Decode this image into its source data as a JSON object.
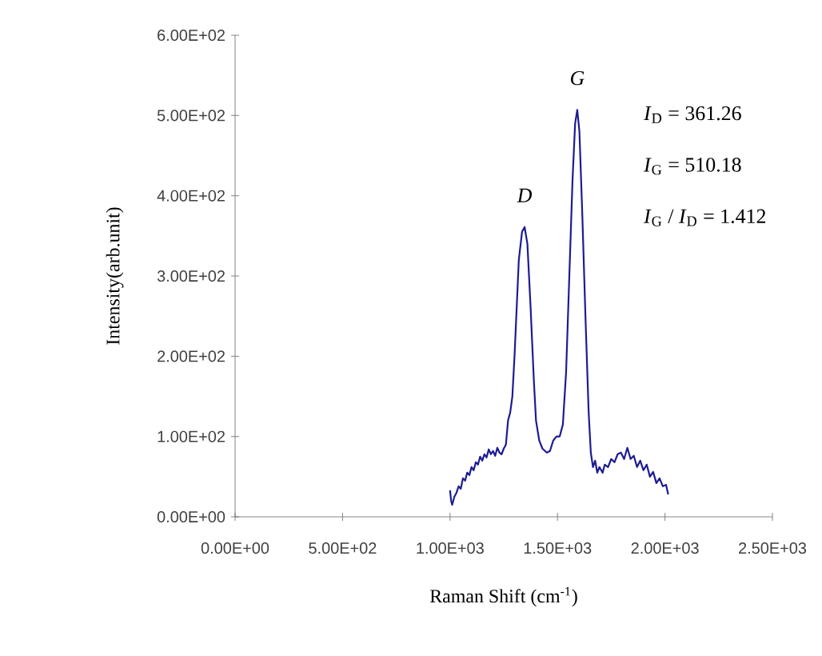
{
  "chart_data": {
    "type": "line",
    "xlabel": "Raman Shift (cm$^{-1}$)",
    "ylabel": "Intensity(arb.unit)",
    "x": [
      1000,
      1005,
      1010,
      1020,
      1030,
      1040,
      1050,
      1060,
      1070,
      1080,
      1090,
      1100,
      1110,
      1120,
      1130,
      1140,
      1150,
      1160,
      1170,
      1180,
      1190,
      1200,
      1210,
      1220,
      1230,
      1240,
      1250,
      1260,
      1270,
      1280,
      1290,
      1300,
      1310,
      1320,
      1335,
      1347,
      1360,
      1375,
      1390,
      1400,
      1415,
      1430,
      1450,
      1465,
      1480,
      1495,
      1510,
      1525,
      1540,
      1555,
      1570,
      1582,
      1592,
      1602,
      1615,
      1630,
      1645,
      1655,
      1665,
      1675,
      1685,
      1695,
      1710,
      1720,
      1735,
      1750,
      1765,
      1780,
      1795,
      1810,
      1825,
      1840,
      1855,
      1870,
      1885,
      1900,
      1915,
      1930,
      1945,
      1960,
      1975,
      1990,
      2005,
      2015
    ],
    "series": [
      {
        "color": "#1c1c94",
        "values": [
          33,
          20,
          15,
          25,
          30,
          38,
          35,
          48,
          45,
          55,
          52,
          62,
          58,
          68,
          65,
          75,
          70,
          78,
          74,
          84,
          78,
          82,
          76,
          86,
          80,
          78,
          85,
          90,
          120,
          130,
          150,
          200,
          260,
          320,
          355,
          361,
          340,
          260,
          170,
          120,
          95,
          85,
          80,
          82,
          95,
          100,
          100,
          115,
          180,
          300,
          420,
          490,
          507,
          480,
          380,
          250,
          130,
          80,
          62,
          70,
          55,
          62,
          55,
          65,
          62,
          72,
          68,
          78,
          80,
          72,
          86,
          72,
          76,
          62,
          70,
          58,
          65,
          50,
          56,
          42,
          48,
          38,
          40,
          28
        ]
      }
    ],
    "xlim": [
      0,
      2500
    ],
    "xticks": [
      {
        "value": 0,
        "label": "0.00E+00"
      },
      {
        "value": 500,
        "label": "5.00E+02"
      },
      {
        "value": 1000,
        "label": "1.00E+03"
      },
      {
        "value": 1500,
        "label": "1.50E+03"
      },
      {
        "value": 2000,
        "label": "2.00E+03"
      },
      {
        "value": 2500,
        "label": "2.50E+03"
      }
    ],
    "ylim": [
      0,
      600
    ],
    "yticks": [
      {
        "value": 0,
        "label": "0.00E+00"
      },
      {
        "value": 100,
        "label": "1.00E+02"
      },
      {
        "value": 200,
        "label": "2.00E+02"
      },
      {
        "value": 300,
        "label": "3.00E+02"
      },
      {
        "value": 400,
        "label": "4.00E+02"
      },
      {
        "value": 500,
        "label": "5.00E+02"
      },
      {
        "value": 600,
        "label": "6.00E+02"
      }
    ],
    "annotations": [
      {
        "text": "D",
        "x": 1347,
        "y": 361
      },
      {
        "text": "G",
        "x": 1592,
        "y": 507
      },
      "*I*$_{D}$ = 361.26",
      "*I*$_{G}$ = 510.18",
      "*I*$_{G}$ / *I*$_{D}$ = 1.412"
    ],
    "grid": false,
    "marker": "none",
    "line_style": "solid"
  }
}
